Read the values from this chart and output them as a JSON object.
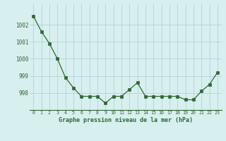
{
  "x": [
    0,
    1,
    2,
    3,
    4,
    5,
    6,
    7,
    8,
    9,
    10,
    11,
    12,
    13,
    14,
    15,
    16,
    17,
    18,
    19,
    20,
    21,
    22,
    23
  ],
  "y": [
    1002.5,
    1001.6,
    1000.9,
    1000.0,
    998.9,
    998.3,
    997.8,
    997.8,
    997.8,
    997.4,
    997.8,
    997.8,
    998.2,
    998.6,
    997.8,
    997.8,
    997.8,
    997.8,
    997.8,
    997.6,
    997.6,
    998.1,
    998.5,
    999.2
  ],
  "line_color": "#2d6a2d",
  "marker_color": "#2d6a2d",
  "bg_color": "#d8eff0",
  "grid_color": "#aacfcf",
  "label_color": "#2d6a2d",
  "xlabel": "Graphe pression niveau de la mer (hPa)",
  "ylim_min": 997.0,
  "ylim_max": 1003.2,
  "yticks": [
    998,
    999,
    1000,
    1001,
    1002
  ],
  "xticks": [
    0,
    1,
    2,
    3,
    4,
    5,
    6,
    7,
    8,
    9,
    10,
    11,
    12,
    13,
    14,
    15,
    16,
    17,
    18,
    19,
    20,
    21,
    22,
    23
  ]
}
